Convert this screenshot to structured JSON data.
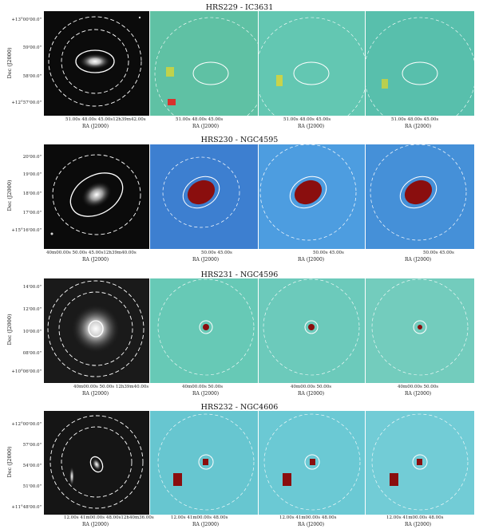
{
  "y_axis_label": "Dec (J2000)",
  "x_axis_label": "RA (J2000)",
  "rows": [
    {
      "title": "HRS229 - IC3631",
      "yticks": [
        "+13°00'00.0\"",
        "59'00.0\"",
        "58'00.0\"",
        "+12°57'00.0\""
      ],
      "opt_xticks": "51.00s  48.00s  45.00s12h39m42.00s",
      "map_xticks": [
        "51.00s  48.00s  45.00s",
        "51.00s  48.00s  45.00s",
        "51.00s  48.00s  45.00s"
      ]
    },
    {
      "title": "HRS230 - NGC4595",
      "yticks": [
        "20'00.0\"",
        "19'00.0\"",
        "18'00.0\"",
        "17'00.0\"",
        "+15°16'00.0\""
      ],
      "opt_xticks": "40m00.00s        50.00s  45.00s12h39m40.00s",
      "map_xticks": [
        "50.00s  45.00s",
        "50.00s  45.00s",
        "50.00s  45.00s"
      ]
    },
    {
      "title": "HRS231 - NGC4596",
      "yticks": [
        "14'00.0\"",
        "12'00.0\"",
        "10'00.0\"",
        "08'00.0\"",
        "+10°06'00.0\""
      ],
      "opt_xticks": "40m00.00s  50.00s  12h39m40.00s",
      "map_xticks": [
        "40m00.00s  50.00s",
        "40m00.00s  50.00s",
        "40m00.00s  50.00s"
      ]
    },
    {
      "title": "HRS232 - NGC4606",
      "yticks": [
        "+12°00'00.0\"",
        "57'00.0\"",
        "54'00.0\"",
        "51'00.0\"",
        "+11°48'00.0\""
      ],
      "opt_xticks": "12.00s  41m00.00s  48.00s12h40m36.00s",
      "map_xticks": [
        "12.00s  41m00.00s  48.00s",
        "12.00s  41m00.00s  48.00s",
        "12.00s  41m00.00s  48.00s"
      ]
    }
  ]
}
